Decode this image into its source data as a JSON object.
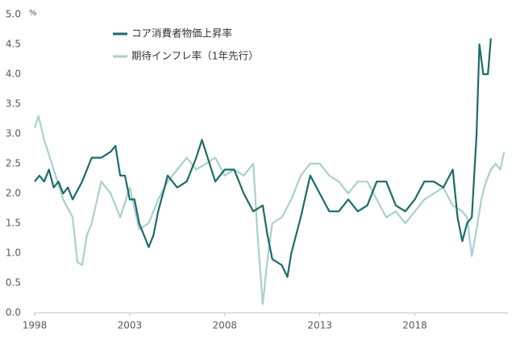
{
  "chart_data": {
    "type": "line",
    "y_unit": "%",
    "xlim": [
      1998,
      2022.9
    ],
    "xticks": [
      1998,
      2003,
      2008,
      2013,
      2018
    ],
    "ylim": [
      0,
      5
    ],
    "yticks": [
      {
        "value": 0,
        "label": "0.0"
      },
      0.5,
      {
        "value": 1,
        "label": "1.0"
      },
      1.5,
      {
        "value": 2,
        "label": "2.0"
      },
      2.5,
      {
        "value": 3,
        "label": "3.0"
      },
      3.5,
      {
        "value": 4,
        "label": "4.0"
      },
      4.5,
      {
        "value": 5,
        "label": "5.0"
      }
    ],
    "grid": false,
    "legend": "top-left",
    "series": [
      {
        "name": "コア消費者物価上昇率",
        "color": "#1b6b6a",
        "x": [
          1998,
          1998.25,
          1998.5,
          1998.75,
          1999,
          1999.25,
          1999.5,
          1999.75,
          2000,
          2000.5,
          2001,
          2001.5,
          2002,
          2002.25,
          2002.5,
          2002.75,
          2003,
          2003.25,
          2003.5,
          2003.75,
          2004,
          2004.25,
          2004.5,
          2005,
          2005.5,
          2006,
          2006.5,
          2006.8,
          2007,
          2007.5,
          2008,
          2008.5,
          2009,
          2009.5,
          2010,
          2010.25,
          2010.5,
          2011,
          2011.3,
          2011.5,
          2012,
          2012.5,
          2013,
          2013.5,
          2014,
          2014.5,
          2015,
          2015.5,
          2016,
          2016.5,
          2017,
          2017.5,
          2018,
          2018.5,
          2019,
          2019.5,
          2020,
          2020.25,
          2020.5,
          2020.75,
          2021,
          2021.25,
          2021.4,
          2021.6,
          2021.85,
          2022
        ],
        "values": [
          2.2,
          2.3,
          2.2,
          2.4,
          2.1,
          2.2,
          2.0,
          2.1,
          1.9,
          2.2,
          2.6,
          2.6,
          2.7,
          2.8,
          2.3,
          2.3,
          1.9,
          1.9,
          1.5,
          1.3,
          1.1,
          1.3,
          1.7,
          2.3,
          2.1,
          2.2,
          2.6,
          2.9,
          2.7,
          2.2,
          2.4,
          2.4,
          2.0,
          1.7,
          1.8,
          1.3,
          0.9,
          0.8,
          0.6,
          1.0,
          1.6,
          2.3,
          2.0,
          1.7,
          1.7,
          1.9,
          1.7,
          1.8,
          2.2,
          2.2,
          1.8,
          1.7,
          1.9,
          2.2,
          2.2,
          2.1,
          2.4,
          1.6,
          1.2,
          1.5,
          1.6,
          3.0,
          4.5,
          4.0,
          4.0,
          4.6
        ]
      },
      {
        "name": "期待インフレ率（1年先行）",
        "color": "#a9cfd0",
        "x": [
          1998,
          1998.2,
          1998.5,
          1999,
          1999.5,
          2000,
          2000.25,
          2000.5,
          2000.75,
          2001,
          2001.5,
          2002,
          2002.5,
          2003,
          2003.5,
          2004,
          2004.5,
          2005,
          2005.5,
          2006,
          2006.5,
          2007,
          2007.5,
          2008,
          2008.5,
          2009,
          2009.5,
          2009.75,
          2010,
          2010.25,
          2010.5,
          2011,
          2011.5,
          2012,
          2012.5,
          2013,
          2013.5,
          2014,
          2014.5,
          2015,
          2015.5,
          2016,
          2016.5,
          2017,
          2017.5,
          2018,
          2018.5,
          2019,
          2019.5,
          2020,
          2020.5,
          2020.75,
          2021,
          2021.25,
          2021.5,
          2021.75,
          2022,
          2022.25,
          2022.5,
          2022.7
        ],
        "values": [
          3.1,
          3.3,
          2.9,
          2.4,
          1.9,
          1.6,
          0.85,
          0.8,
          1.3,
          1.5,
          2.2,
          2.0,
          1.6,
          2.1,
          1.4,
          1.5,
          1.9,
          2.2,
          2.4,
          2.6,
          2.4,
          2.5,
          2.6,
          2.3,
          2.4,
          2.3,
          2.5,
          1.2,
          0.15,
          0.9,
          1.5,
          1.6,
          1.9,
          2.3,
          2.5,
          2.5,
          2.3,
          2.2,
          2.0,
          2.2,
          2.2,
          1.9,
          1.6,
          1.7,
          1.5,
          1.7,
          1.9,
          2.0,
          2.1,
          1.8,
          1.7,
          1.6,
          0.95,
          1.4,
          1.9,
          2.2,
          2.4,
          2.5,
          2.4,
          2.7
        ]
      }
    ]
  }
}
